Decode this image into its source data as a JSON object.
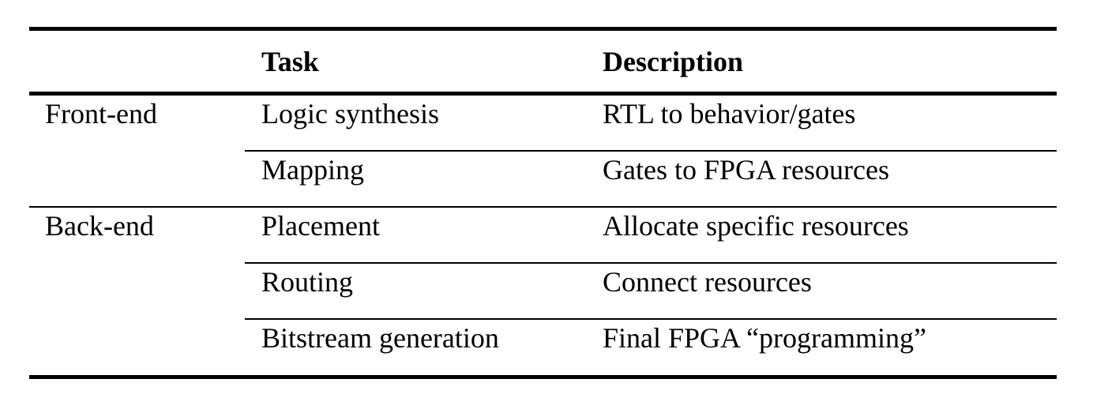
{
  "table": {
    "headers": {
      "phase": "",
      "task": "Task",
      "description": "Description"
    },
    "rows": [
      {
        "phase": "Front-end",
        "task": "Logic synthesis",
        "description": "RTL to behavior/gates"
      },
      {
        "phase": "",
        "task": "Mapping",
        "description": "Gates to FPGA resources"
      },
      {
        "phase": "Back-end",
        "task": "Placement",
        "description": "Allocate specific resources"
      },
      {
        "phase": "",
        "task": "Routing",
        "description": "Connect resources"
      },
      {
        "phase": "",
        "task": "Bitstream generation",
        "description": "Final FPGA “programming”"
      }
    ]
  }
}
